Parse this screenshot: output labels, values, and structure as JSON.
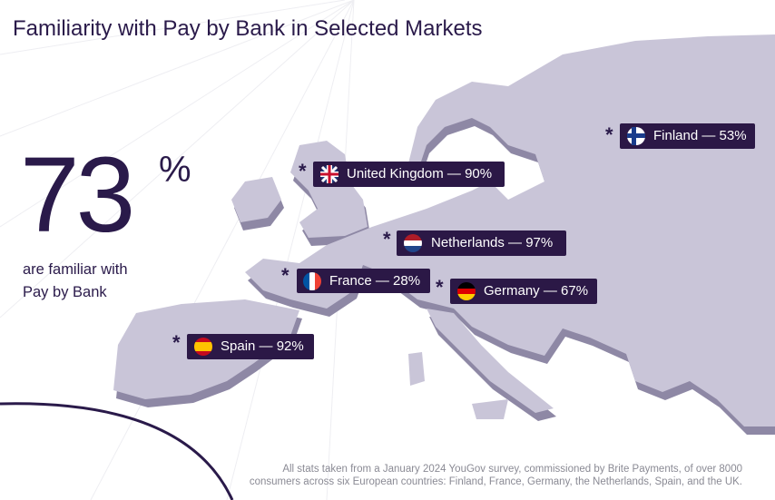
{
  "header": {
    "title": "Familiarity with Pay by Bank in Selected Markets"
  },
  "headline": {
    "value": "73",
    "unit": "%",
    "lines": [
      "are familiar with",
      "Pay by Bank"
    ]
  },
  "markets": [
    {
      "symbol": "*",
      "label": "Finland — 53%"
    },
    {
      "symbol": "*",
      "label": "United Kingdom — 90%"
    },
    {
      "symbol": "*",
      "label": "Netherlands — 97%"
    },
    {
      "symbol": "*",
      "label": "France — 28%"
    },
    {
      "symbol": "*",
      "label": "Germany — 67%"
    },
    {
      "symbol": "*",
      "label": "Spain — 92%"
    }
  ],
  "footnote": {
    "lines": [
      "All stats taken from a January 2024 YouGov survey, commissioned by Brite Payments, of over 8000",
      "consumers across six European countries: Finland, France, Germany, the Netherlands, Spain, and the UK."
    ]
  }
}
